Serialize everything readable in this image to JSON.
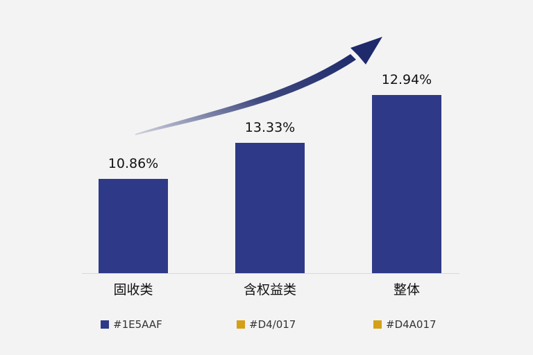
{
  "chart_data": {
    "type": "bar",
    "title": "",
    "xlabel": "",
    "ylabel": "",
    "ylim": [
      0,
      14
    ],
    "grid": false,
    "categories": [
      "固收类",
      "含权益类",
      "整体"
    ],
    "values": [
      10.86,
      13.33,
      12.94
    ],
    "value_labels": [
      "10.86%",
      "13.33%",
      "12.94%"
    ],
    "bar_color": "#2E3A87",
    "arrow_color": "#1E2A6B",
    "legend_placement": "bottom",
    "legend": [
      {
        "label": "#1E5AAF",
        "color": "#2E3A87"
      },
      {
        "label": "#D4/017",
        "color": "#D4A017"
      },
      {
        "label": "#D4A017",
        "color": "#D4A017"
      }
    ]
  }
}
